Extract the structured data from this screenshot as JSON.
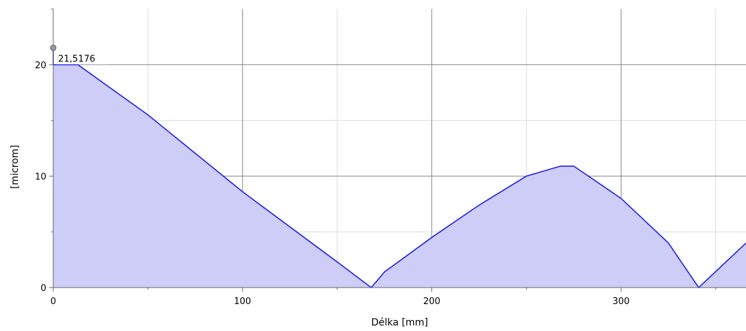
{
  "chart_data": {
    "type": "area",
    "title": "",
    "xlabel": "Délka [mm]",
    "ylabel": "[microm]",
    "xlim": [
      0,
      366
    ],
    "ylim": [
      0,
      25
    ],
    "x_ticks": [
      0,
      100,
      200,
      300
    ],
    "y_ticks": [
      0,
      10,
      20
    ],
    "x_minor_step": 50,
    "y_minor_step": 5,
    "grid": true,
    "legend": "none",
    "colors": {
      "line": "#1f1fe6",
      "fill": "#cdcdf8",
      "grid_major": "#8c8c8c",
      "grid_minor": "#dcdcdc",
      "axis": "#666666",
      "marker": "#9b9b9b"
    },
    "series": [
      {
        "values": [
          {
            "x": 0,
            "y": 21.5176
          },
          {
            "x": 0,
            "y": 20
          },
          {
            "x": 13,
            "y": 20
          },
          {
            "x": 50,
            "y": 15.5
          },
          {
            "x": 100,
            "y": 8.6
          },
          {
            "x": 150,
            "y": 2.3
          },
          {
            "x": 168,
            "y": 0
          },
          {
            "x": 175,
            "y": 1.4
          },
          {
            "x": 200,
            "y": 4.5
          },
          {
            "x": 225,
            "y": 7.4
          },
          {
            "x": 250,
            "y": 10.0
          },
          {
            "x": 268,
            "y": 10.9
          },
          {
            "x": 275,
            "y": 10.9
          },
          {
            "x": 300,
            "y": 8.0
          },
          {
            "x": 325,
            "y": 4.0
          },
          {
            "x": 341,
            "y": 0
          },
          {
            "x": 366,
            "y": 4.0
          }
        ]
      }
    ],
    "annotation": {
      "x": 0,
      "y": 21.5176,
      "label": "21,5176"
    }
  }
}
